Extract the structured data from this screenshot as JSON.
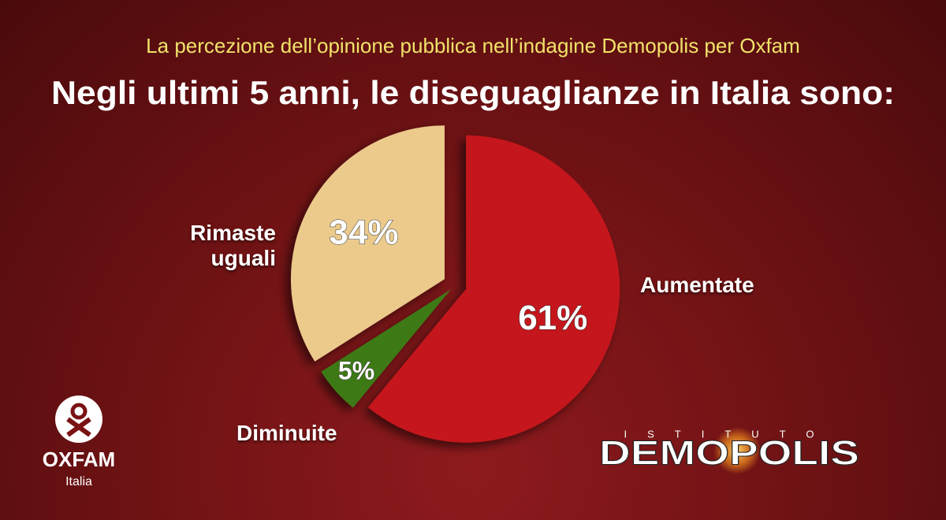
{
  "chart_data": {
    "type": "pie",
    "subtitle": "La percezione dell’opinione pubblica nell’indagine Demopolis per Oxfam",
    "title": "Negli ultimi 5 anni, le diseguaglianze in Italia sono:",
    "categories": [
      "Aumentate",
      "Diminuite",
      "Rimaste uguali"
    ],
    "values": [
      61,
      5,
      34
    ],
    "value_labels": [
      "61%",
      "5%",
      "34%"
    ],
    "colors": [
      "#c4191b",
      "#3e7a18",
      "#ebca8c"
    ]
  },
  "branding": {
    "oxfam": "OXFAM",
    "oxfam_sub": "Italia",
    "demopolis_pre": "ISTITUTO",
    "demopolis": "DEMOPOLIS"
  }
}
